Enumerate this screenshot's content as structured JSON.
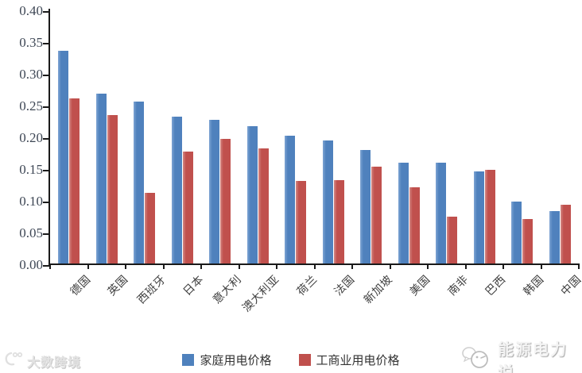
{
  "chart_data": {
    "type": "bar",
    "title": "",
    "categories": [
      "德国",
      "英国",
      "西班牙",
      "日本",
      "意大利",
      "澳大利亚",
      "荷兰",
      "法国",
      "新加坡",
      "美国",
      "南非",
      "巴西",
      "韩国",
      "中国"
    ],
    "series": [
      {
        "name": "家庭用电价格",
        "color": "#4f81bd",
        "values": [
          0.335,
          0.268,
          0.255,
          0.231,
          0.226,
          0.216,
          0.201,
          0.194,
          0.179,
          0.159,
          0.159,
          0.145,
          0.097,
          0.083
        ]
      },
      {
        "name": "工商业用电价格",
        "color": "#c0504d",
        "values": [
          0.26,
          0.234,
          0.111,
          0.176,
          0.196,
          0.181,
          0.13,
          0.131,
          0.152,
          0.12,
          0.074,
          0.147,
          0.07,
          0.093
        ]
      }
    ],
    "ylim": [
      0,
      0.4
    ],
    "y_ticks": [
      "0.40",
      "0.35",
      "0.30",
      "0.25",
      "0.20",
      "0.15",
      "0.10",
      "0.05",
      "0.00"
    ],
    "grid": false,
    "legend_position": "bottom-center",
    "xlabel": "",
    "ylabel": ""
  },
  "legend": {
    "items": [
      {
        "label": "家庭用电价格",
        "color": "#4f81bd"
      },
      {
        "label": "工商业用电价格",
        "color": "#c0504d"
      }
    ]
  },
  "watermarks": {
    "bottom_left": {
      "text": "大数跨境",
      "icon": "crescent-with-dots-logo-icon"
    },
    "bottom_right": {
      "text": "能源电力说",
      "icon": "speech-bubbles-logo-icon"
    }
  },
  "colors": {
    "household_blue": "#4f81bd",
    "industrial_red": "#c0504d",
    "axis": "#1a1a1a",
    "y_label": "#3e4755",
    "x_label": "#3f3f3f"
  }
}
